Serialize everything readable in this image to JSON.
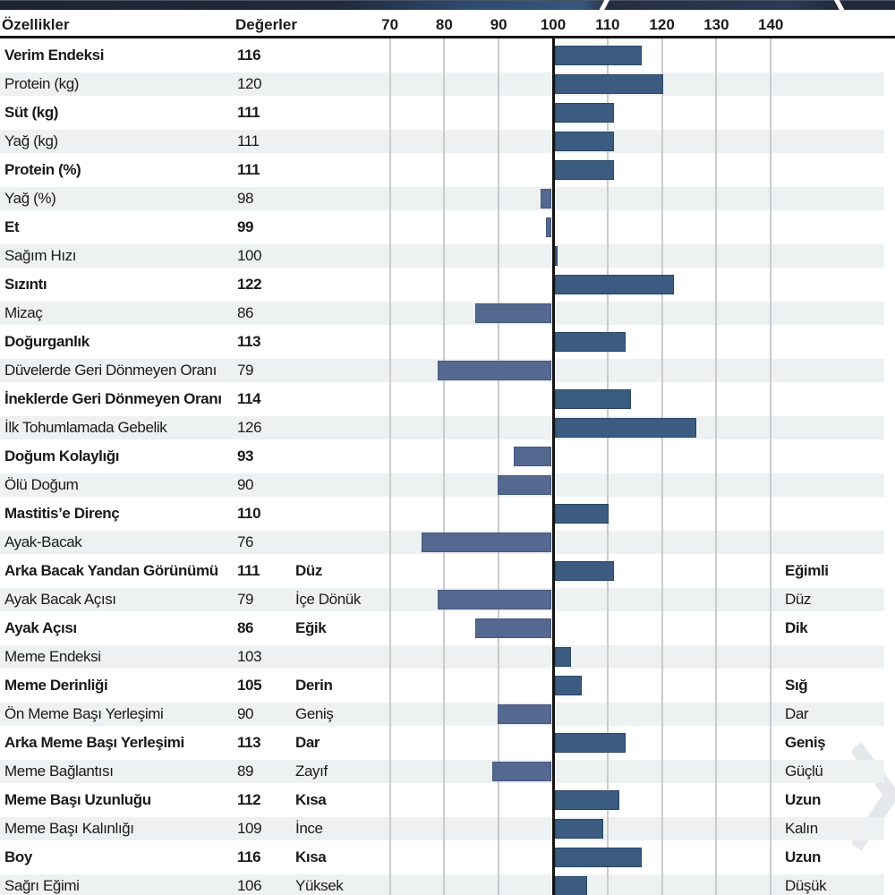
{
  "header": {
    "traits_col": "Özellikler",
    "values_col": "Değerler"
  },
  "axis": {
    "ticks": [
      70,
      80,
      90,
      100,
      110,
      120,
      130,
      140
    ],
    "baseline": 100
  },
  "colors": {
    "bar_above": "#3b5b80",
    "bar_above_border": "#2b4764",
    "bar_below": "#556890",
    "bar_below_border": "#45587e",
    "band": "#edf1f1",
    "grid": "#c9cbcd",
    "baseline_line": "#141414",
    "topbar": "#222a3a",
    "topbar_accent": "#36577f"
  },
  "chart_data": {
    "type": "bar",
    "orientation": "horizontal",
    "baseline": 100,
    "xlim": [
      70,
      140
    ],
    "xticks": [
      70,
      80,
      90,
      100,
      110,
      120,
      130,
      140
    ],
    "legend": null,
    "grid": true,
    "categories_header": "Özellikler",
    "values_header": "Değerler",
    "rows": [
      {
        "label": "Verim Endeksi",
        "value": 116,
        "bold": true,
        "left_label": "",
        "right_label": ""
      },
      {
        "label": "Protein (kg)",
        "value": 120,
        "bold": false,
        "left_label": "",
        "right_label": ""
      },
      {
        "label": "Süt (kg)",
        "value": 111,
        "bold": true,
        "left_label": "",
        "right_label": ""
      },
      {
        "label": "Yağ (kg)",
        "value": 111,
        "bold": false,
        "left_label": "",
        "right_label": ""
      },
      {
        "label": "Protein (%)",
        "value": 111,
        "bold": true,
        "left_label": "",
        "right_label": ""
      },
      {
        "label": "Yağ (%)",
        "value": 98,
        "bold": false,
        "left_label": "",
        "right_label": ""
      },
      {
        "label": "Et",
        "value": 99,
        "bold": true,
        "left_label": "",
        "right_label": ""
      },
      {
        "label": "Sağım Hızı",
        "value": 100,
        "bold": false,
        "left_label": "",
        "right_label": ""
      },
      {
        "label": "Sızıntı",
        "value": 122,
        "bold": true,
        "left_label": "",
        "right_label": ""
      },
      {
        "label": "Mizaç",
        "value": 86,
        "bold": false,
        "left_label": "",
        "right_label": ""
      },
      {
        "label": "Doğurganlık",
        "value": 113,
        "bold": true,
        "left_label": "",
        "right_label": ""
      },
      {
        "label": "Düvelerde Geri Dönmeyen Oranı",
        "value": 79,
        "bold": false,
        "left_label": "",
        "right_label": ""
      },
      {
        "label": "İneklerde Geri Dönmeyen Oranı",
        "value": 114,
        "bold": true,
        "left_label": "",
        "right_label": ""
      },
      {
        "label": "İlk Tohumlamada Gebelik",
        "value": 126,
        "bold": false,
        "left_label": "",
        "right_label": ""
      },
      {
        "label": "Doğum Kolaylığı",
        "value": 93,
        "bold": true,
        "left_label": "",
        "right_label": ""
      },
      {
        "label": "Ölü Doğum",
        "value": 90,
        "bold": false,
        "left_label": "",
        "right_label": ""
      },
      {
        "label": "Mastitis’e Direnç",
        "value": 110,
        "bold": true,
        "left_label": "",
        "right_label": ""
      },
      {
        "label": "Ayak-Bacak",
        "value": 76,
        "bold": false,
        "left_label": "",
        "right_label": ""
      },
      {
        "label": "Arka Bacak Yandan Görünümü",
        "value": 111,
        "bold": true,
        "left_label": "Düz",
        "right_label": "Eğimli"
      },
      {
        "label": "Ayak Bacak Açısı",
        "value": 79,
        "bold": false,
        "left_label": "İçe Dönük",
        "right_label": "Düz"
      },
      {
        "label": "Ayak  Açısı",
        "value": 86,
        "bold": true,
        "left_label": "Eğik",
        "right_label": "Dik"
      },
      {
        "label": "Meme Endeksi",
        "value": 103,
        "bold": false,
        "left_label": "",
        "right_label": ""
      },
      {
        "label": "Meme Derinliği",
        "value": 105,
        "bold": true,
        "left_label": "Derin",
        "right_label": "Sığ"
      },
      {
        "label": "Ön Meme Başı Yerleşimi",
        "value": 90,
        "bold": false,
        "left_label": "Geniş",
        "right_label": "Dar"
      },
      {
        "label": "Arka Meme Başı Yerleşimi",
        "value": 113,
        "bold": true,
        "left_label": "Dar",
        "right_label": "Geniş"
      },
      {
        "label": "Meme Bağlantısı",
        "value": 89,
        "bold": false,
        "left_label": "Zayıf",
        "right_label": "Güçlü"
      },
      {
        "label": "Meme Başı Uzunluğu",
        "value": 112,
        "bold": true,
        "left_label": "Kısa",
        "right_label": "Uzun"
      },
      {
        "label": "Meme Başı Kalınlığı",
        "value": 109,
        "bold": false,
        "left_label": "İnce",
        "right_label": "Kalın"
      },
      {
        "label": "Boy",
        "value": 116,
        "bold": true,
        "left_label": "Kısa",
        "right_label": "Uzun"
      },
      {
        "label": "Sağrı Eğimi",
        "value": 106,
        "bold": false,
        "left_label": "Yüksek",
        "right_label": "Düşük"
      }
    ]
  }
}
